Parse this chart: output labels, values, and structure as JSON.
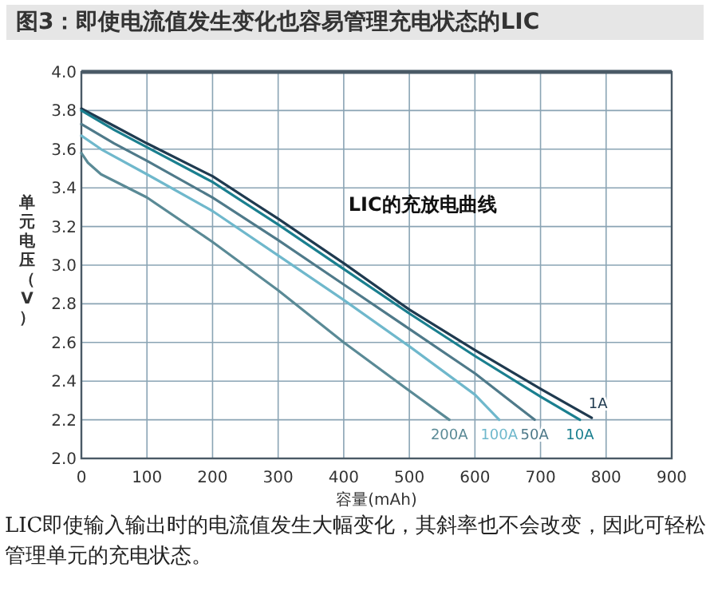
{
  "chart_data": {
    "type": "line",
    "title": "图3：即使电流值发生变化也容易管理充电状态的LIC",
    "xlabel": "容量(mAh)",
    "ylabel": "单元电压（V）",
    "xlim": [
      0,
      900
    ],
    "xticks": [
      0,
      100,
      200,
      300,
      400,
      500,
      600,
      700,
      800,
      900
    ],
    "ylim": [
      2.0,
      4.0
    ],
    "yticks": [
      {
        "value": 2.0,
        "label": "2.0"
      },
      2.2,
      2.4,
      2.6,
      2.8,
      {
        "value": 3.0,
        "label": "3.0"
      },
      3.2,
      3.4,
      3.6,
      3.8,
      {
        "value": 4.0,
        "label": "4.0"
      }
    ],
    "grid": true,
    "marker": "none",
    "line_style": "solid",
    "annotations": [
      "LIC的充放电曲线",
      "LIC即使输入输出时的电流值发生大幅变化，其斜率也不会改变，因此可轻松管理单元的充电状态。"
    ],
    "series": [
      {
        "name": "1A",
        "color": "#1f3a4f",
        "x": [
          0,
          50,
          100,
          200,
          300,
          400,
          500,
          600,
          700,
          778
        ],
        "values": [
          3.81,
          3.72,
          3.63,
          3.46,
          3.24,
          3.01,
          2.77,
          2.56,
          2.36,
          2.21
        ]
      },
      {
        "name": "10A",
        "color": "#1a7f8f",
        "x": [
          0,
          50,
          100,
          200,
          300,
          400,
          500,
          600,
          700,
          760
        ],
        "values": [
          3.8,
          3.7,
          3.61,
          3.43,
          3.21,
          2.98,
          2.75,
          2.53,
          2.32,
          2.2
        ]
      },
      {
        "name": "50A",
        "color": "#4f7a8a",
        "x": [
          0,
          50,
          100,
          200,
          300,
          400,
          500,
          600,
          691
        ],
        "values": [
          3.73,
          3.63,
          3.54,
          3.35,
          3.13,
          2.9,
          2.67,
          2.44,
          2.2
        ]
      },
      {
        "name": "100A",
        "color": "#6fb8cc",
        "x": [
          0,
          30,
          100,
          200,
          300,
          400,
          500,
          600,
          637
        ],
        "values": [
          3.67,
          3.6,
          3.47,
          3.28,
          3.05,
          2.82,
          2.58,
          2.33,
          2.2
        ]
      },
      {
        "name": "200A",
        "color": "#5a8a96",
        "x": [
          0,
          10,
          30,
          100,
          200,
          300,
          400,
          500,
          561
        ],
        "values": [
          3.58,
          3.53,
          3.47,
          3.35,
          3.12,
          2.87,
          2.6,
          2.35,
          2.2
        ]
      }
    ]
  }
}
